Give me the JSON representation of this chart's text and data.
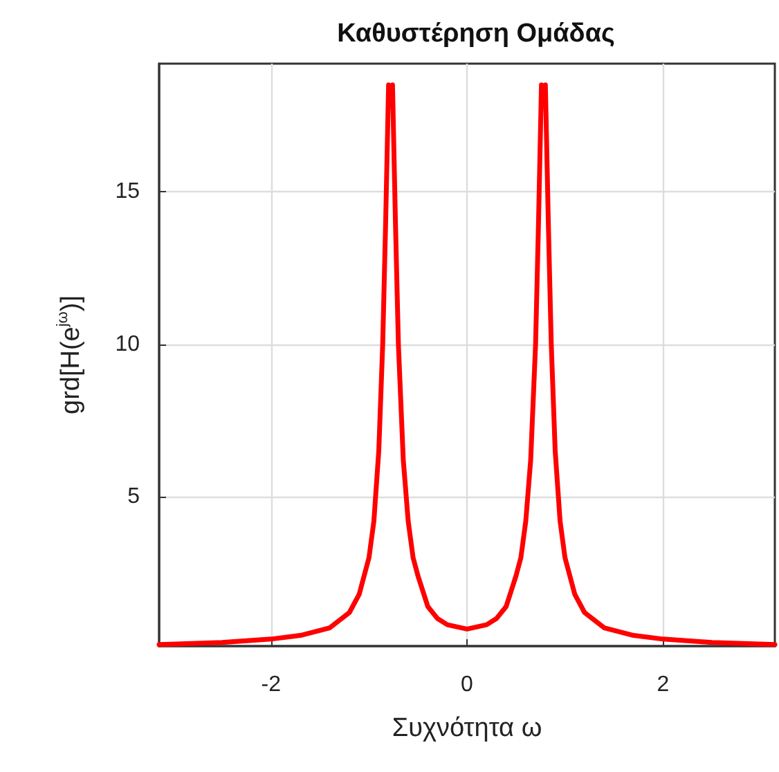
{
  "chart_data": {
    "type": "line",
    "title": "Καθυστέρηση Ομάδας",
    "xlabel": "Συχνότητα ω",
    "ylabel": "grd[H(e$^{jω}$)]",
    "x": [
      -3.1416,
      -2.5,
      -2,
      -1.7,
      -1.4,
      -1.2,
      -1.1,
      -1,
      -0.95,
      -0.9,
      -0.86,
      -0.83,
      -0.8,
      -0.78,
      -0.76,
      -0.73,
      -0.7,
      -0.65,
      -0.6,
      -0.55,
      -0.5,
      -0.4,
      -0.3,
      -0.2,
      0,
      0.2,
      0.3,
      0.4,
      0.5,
      0.55,
      0.6,
      0.65,
      0.7,
      0.73,
      0.76,
      0.78,
      0.8,
      0.83,
      0.86,
      0.9,
      0.95,
      1,
      1.1,
      1.2,
      1.4,
      1.7,
      2,
      2.5,
      3.1416
    ],
    "series": [
      {
        "color": "#ff0000",
        "values": [
          0.15,
          0.22,
          0.33,
          0.45,
          0.7,
          1.2,
          1.8,
          3,
          4.2,
          6.5,
          10,
          14,
          18.5,
          null,
          18.5,
          14,
          10,
          6.2,
          4.2,
          3,
          2.4,
          1.4,
          1,
          0.8,
          0.66,
          0.8,
          1,
          1.4,
          2.4,
          3,
          4.2,
          6.2,
          10,
          14,
          18.5,
          null,
          18.5,
          14,
          10,
          6.5,
          4.2,
          3,
          1.8,
          1.2,
          0.7,
          0.45,
          0.33,
          0.22,
          0.15
        ]
      }
    ],
    "xlim": [
      -3.1416,
      3.1416
    ],
    "xticks": [
      -2,
      0,
      2
    ],
    "ylim": [
      0.1,
      19.2
    ],
    "yticks": [
      5,
      10,
      15
    ],
    "grid": true
  }
}
